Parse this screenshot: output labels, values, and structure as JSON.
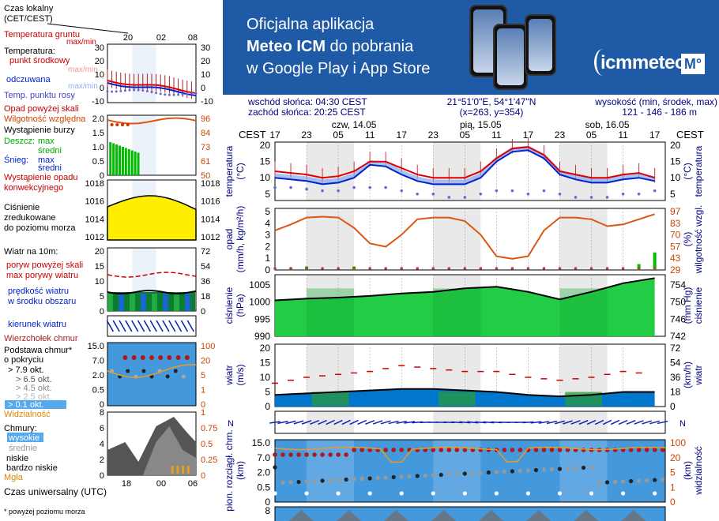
{
  "banner": {
    "line1": "Oficjalna aplikacja",
    "line2_bold": "Meteo ICM",
    "line2_rest": " do pobrania",
    "line3": "w Google Play i App Store",
    "brand": "icmmeteo",
    "brand_box": "M°"
  },
  "header": {
    "sunrise": "wschód słońca: 04:30 CEST",
    "sunset": "zachód słońca: 20:25 CEST",
    "coords": "21°51'0\"E, 54°1'47\"N",
    "grid": "(x=263,  y=354)",
    "elev_label": "wysokość (min, środek, max)",
    "elev_values": "121 - 146 - 186 m"
  },
  "legend": {
    "time_local": "Czas lokalny",
    "time_local2": "(CET/CEST)",
    "ground_temp": "Temperatura gruntu",
    "ground_temp2": "max/min",
    "temperature": "Temperatura:",
    "midpoint": "punkt środkowy",
    "max_min": "max/min",
    "feels": "odczuwana",
    "feels_mm": "max/min",
    "dew": "Temp. punktu rosy",
    "precip_above": "Opad powyżej skali",
    "humidity": "Wilgotność względna",
    "storm": "Wystąpienie burzy",
    "rain": "Deszcz:",
    "rain_max": "max",
    "rain_mid": "średni",
    "snow": "Śnieg:",
    "snow_max": "max",
    "snow_mid": "średni",
    "precip_occ": "Wystąpienie opadu",
    "precip_occ2": "konwekcyjnego",
    "pressure1": "Ciśnienie",
    "pressure2": "zredukowane",
    "pressure3": "do poziomu morza",
    "wind_10m": "Wiatr na 10m:",
    "gust_above": "poryw powyżej skali",
    "gust_max": "max porywy wiatru",
    "wind_speed1": "prędkość wiatru",
    "wind_speed2": "w środku obszaru",
    "wind_dir": "kierunek wiatru",
    "cloud_top": "Wierzchołek chmur",
    "cloud_base1": "Podstawa chmur*",
    "cloud_base2": "o pokryciu",
    "okt1": "> 7.9 okt.",
    "okt2": "> 6.5 okt.",
    "okt3": "> 4.5 okt.",
    "okt4": "> 2.5 okt.",
    "okt5": "> 0.1 okt.",
    "visibility": "Widzialność",
    "clouds": "Chmury:",
    "c_high": "wysokie",
    "c_mid": "średnie",
    "c_low": "niskie",
    "c_vlow": "bardzo niskie",
    "fog": "Mgła",
    "utc": "Czas uniwersalny (UTC)",
    "footnote": "* powyżej poziomu morza",
    "top_ticks": [
      "20",
      "02",
      "08"
    ],
    "bottom_ticks": [
      "18",
      "00",
      "06"
    ],
    "temp_ticks": [
      "30",
      "20",
      "10",
      "0",
      "-10"
    ],
    "prec_ticks_l": [
      "2.0",
      "1.5",
      "1.0",
      "0.5",
      "0"
    ],
    "prec_ticks_r": [
      "96",
      "84",
      "73",
      "61",
      "50"
    ],
    "pres_ticks": [
      "1018",
      "1016",
      "1014",
      "1012"
    ],
    "wind_ticks_l": [
      "20",
      "15",
      "10",
      "5",
      "0"
    ],
    "wind_ticks_r": [
      "72",
      "54",
      "36",
      "18",
      "0"
    ],
    "cloud_ticks_l": [
      "15.0",
      "7.0",
      "2.0",
      "0.5",
      "0"
    ],
    "cloud_ticks_r": [
      "100",
      "20",
      "5",
      "1",
      "0"
    ],
    "cl_ticks_l": [
      "8",
      "6",
      "4",
      "2",
      "0"
    ],
    "cl_ticks_r": [
      "1",
      "0.75",
      "0.5",
      "0.25",
      "0"
    ]
  },
  "main": {
    "cest": "CEST",
    "hour_ticks": [
      "17",
      "23",
      "05",
      "11",
      "17",
      "23",
      "05",
      "11",
      "17",
      "23",
      "05",
      "11",
      "17"
    ],
    "days": [
      "czw, 14.05",
      "pią, 15.05",
      "sob, 16.05"
    ],
    "temp_label": "temperatura",
    "temp_unit": "(°C)",
    "temp_ticks": [
      "20",
      "15",
      "10",
      "5"
    ],
    "precip_label": "opad",
    "precip_unit": "(mm/h, kg/m²/h)",
    "precip_ticks": [
      "5",
      "4",
      "3",
      "2",
      "1",
      "0"
    ],
    "hum_label": "wilgotność wzgl.",
    "hum_unit": "(%)",
    "hum_ticks": [
      "97",
      "83",
      "70",
      "57",
      "43",
      "29"
    ],
    "pres_label": "ciśnienie",
    "pres_unit": "(hPa)",
    "pres_ticks": [
      "1005",
      "1000",
      "995",
      "990"
    ],
    "pres_unit_r": "(mm Hg)",
    "pres_ticks_r": [
      "754",
      "750",
      "746",
      "742"
    ],
    "wind_label": "wiatr",
    "wind_unit": "(m/s)",
    "wind_ticks": [
      "20",
      "15",
      "10",
      "5",
      "0"
    ],
    "wind_unit_r": "(km/h)",
    "wind_ticks_r": [
      "72",
      "54",
      "36",
      "18",
      "0"
    ],
    "cloud_label": "pion. rozciągł. chm.",
    "cloud_unit": "(km)",
    "cloud_ticks": [
      "15.0",
      "7.0",
      "2.0",
      "0.5",
      "0"
    ],
    "vis_label": "widzialność",
    "vis_unit": "(km)",
    "vis_ticks": [
      "100",
      "20",
      "5",
      "1",
      "0"
    ],
    "bottom_tick": "8"
  },
  "colors": {
    "temp_mid": "#dd0000",
    "feels": "#0022cc",
    "dew": "#6666dd",
    "humidity": "#dd5511",
    "rain": "#00bb00",
    "pressure_fill": "#22cc44",
    "pressure_fill_legend": "#ffee00",
    "wind_gust": "#cc0000",
    "wind_fill": "#0077cc",
    "cloud_bg": "#4499dd",
    "vis_line": "#ee9922"
  },
  "chart_data": [
    {
      "type": "line",
      "title": "temperatura",
      "x_hours_from_start": [
        0,
        3,
        6,
        9,
        12,
        15,
        18,
        21,
        24,
        27,
        30,
        33,
        36,
        39,
        42,
        45,
        48,
        51,
        54,
        57,
        60,
        63,
        66,
        69,
        72
      ],
      "series": [
        {
          "name": "punkt środkowy",
          "values": [
            12,
            11.5,
            11,
            10,
            10.5,
            12,
            15,
            15,
            13,
            11,
            10,
            10,
            10,
            12,
            16,
            19,
            19.5,
            17,
            12,
            11,
            10,
            10,
            11,
            11.5,
            10
          ]
        },
        {
          "name": "odczuwana",
          "values": [
            10,
            9.5,
            9,
            8,
            8.5,
            10,
            14,
            13.5,
            11,
            9,
            8,
            8,
            8,
            10,
            15,
            18,
            18.5,
            16,
            11,
            9.5,
            8.5,
            8.5,
            9.5,
            10,
            9
          ]
        },
        {
          "name": "Temp. punktu rosy",
          "values": [
            7,
            7,
            6.5,
            6,
            6,
            7,
            7,
            7,
            6,
            5,
            5,
            4,
            4,
            5,
            6,
            6,
            5,
            6,
            5,
            4,
            4,
            4,
            5,
            5,
            6
          ]
        }
      ],
      "ylim": [
        3,
        21
      ]
    },
    {
      "type": "line",
      "title": "opad / wilgotność wzgl.",
      "x_hours_from_start": [
        0,
        3,
        6,
        9,
        12,
        15,
        18,
        21,
        24,
        27,
        30,
        33,
        36,
        39,
        42,
        45,
        48,
        51,
        54,
        57,
        60,
        63,
        66,
        69,
        72
      ],
      "series": [
        {
          "name": "wilgotność wzgl.",
          "values": [
            75,
            82,
            90,
            91,
            90,
            78,
            60,
            56,
            70,
            88,
            90,
            90,
            86,
            70,
            45,
            42,
            45,
            75,
            90,
            90,
            88,
            80,
            82,
            88,
            94
          ]
        },
        {
          "name": "opad",
          "values": [
            0,
            0.2,
            0.3,
            0,
            0,
            0.3,
            0,
            0,
            0,
            0,
            0,
            0,
            0,
            0,
            0,
            0,
            0,
            0,
            0,
            0,
            0,
            0,
            0,
            0.5,
            1.5
          ]
        }
      ],
      "ylim_precip": [
        0,
        5
      ],
      "ylim_humidity": [
        29,
        97
      ]
    },
    {
      "type": "area",
      "title": "ciśnienie",
      "x_hours_from_start": [
        0,
        6,
        12,
        18,
        24,
        30,
        36,
        42,
        48,
        54,
        60,
        66,
        72
      ],
      "values": [
        1000.5,
        1001,
        1001.3,
        1001.8,
        1002.5,
        1003,
        1004,
        1004.5,
        1003,
        1000.8,
        1003,
        1005.5,
        1007
      ],
      "ylim": [
        990,
        1008
      ]
    },
    {
      "type": "line",
      "title": "wiatr",
      "x_hours_from_start": [
        0,
        6,
        12,
        18,
        24,
        30,
        36,
        42,
        48,
        54,
        60,
        66,
        72
      ],
      "series": [
        {
          "name": "max porywy wiatru",
          "values": [
            8,
            10,
            11,
            12,
            14,
            13,
            12,
            12,
            10,
            9,
            10,
            12,
            11
          ]
        },
        {
          "name": "prędkość wiatru",
          "values": [
            4,
            4.5,
            5,
            5.5,
            6,
            6,
            5.5,
            5,
            4,
            3.5,
            4,
            5,
            5
          ]
        }
      ],
      "ylim": [
        0,
        20
      ]
    }
  ]
}
